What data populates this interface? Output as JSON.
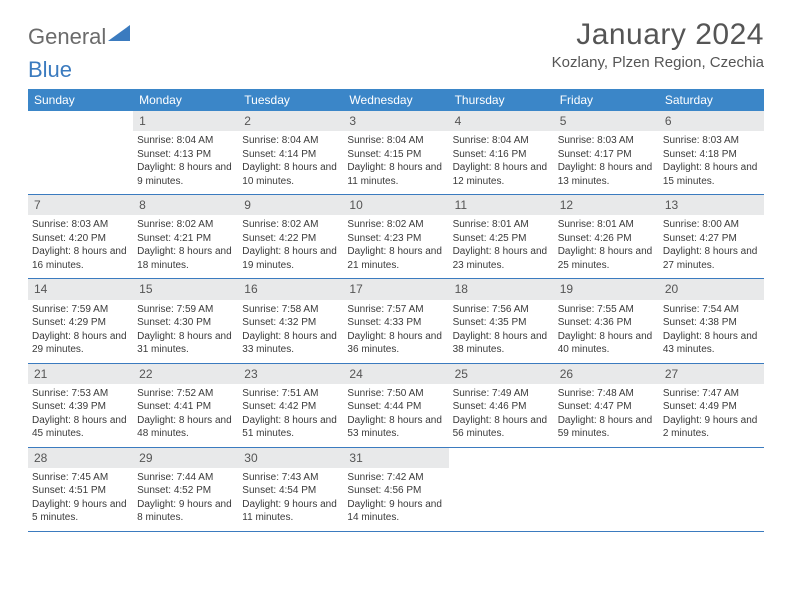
{
  "brand": {
    "part1": "General",
    "part2": "Blue"
  },
  "title": "January 2024",
  "location": "Kozlany, Plzen Region, Czechia",
  "colors": {
    "header_bg": "#3b86c8",
    "daynum_bg": "#e8e9ea",
    "rule": "#3b7bbf",
    "text": "#3a3a3a",
    "logo_gray": "#6b6b6b",
    "logo_blue": "#3b7bbf"
  },
  "dow": [
    "Sunday",
    "Monday",
    "Tuesday",
    "Wednesday",
    "Thursday",
    "Friday",
    "Saturday"
  ],
  "weeks": [
    [
      null,
      {
        "n": "1",
        "sr": "8:04 AM",
        "ss": "4:13 PM",
        "dl": "8 hours and 9 minutes."
      },
      {
        "n": "2",
        "sr": "8:04 AM",
        "ss": "4:14 PM",
        "dl": "8 hours and 10 minutes."
      },
      {
        "n": "3",
        "sr": "8:04 AM",
        "ss": "4:15 PM",
        "dl": "8 hours and 11 minutes."
      },
      {
        "n": "4",
        "sr": "8:04 AM",
        "ss": "4:16 PM",
        "dl": "8 hours and 12 minutes."
      },
      {
        "n": "5",
        "sr": "8:03 AM",
        "ss": "4:17 PM",
        "dl": "8 hours and 13 minutes."
      },
      {
        "n": "6",
        "sr": "8:03 AM",
        "ss": "4:18 PM",
        "dl": "8 hours and 15 minutes."
      }
    ],
    [
      {
        "n": "7",
        "sr": "8:03 AM",
        "ss": "4:20 PM",
        "dl": "8 hours and 16 minutes."
      },
      {
        "n": "8",
        "sr": "8:02 AM",
        "ss": "4:21 PM",
        "dl": "8 hours and 18 minutes."
      },
      {
        "n": "9",
        "sr": "8:02 AM",
        "ss": "4:22 PM",
        "dl": "8 hours and 19 minutes."
      },
      {
        "n": "10",
        "sr": "8:02 AM",
        "ss": "4:23 PM",
        "dl": "8 hours and 21 minutes."
      },
      {
        "n": "11",
        "sr": "8:01 AM",
        "ss": "4:25 PM",
        "dl": "8 hours and 23 minutes."
      },
      {
        "n": "12",
        "sr": "8:01 AM",
        "ss": "4:26 PM",
        "dl": "8 hours and 25 minutes."
      },
      {
        "n": "13",
        "sr": "8:00 AM",
        "ss": "4:27 PM",
        "dl": "8 hours and 27 minutes."
      }
    ],
    [
      {
        "n": "14",
        "sr": "7:59 AM",
        "ss": "4:29 PM",
        "dl": "8 hours and 29 minutes."
      },
      {
        "n": "15",
        "sr": "7:59 AM",
        "ss": "4:30 PM",
        "dl": "8 hours and 31 minutes."
      },
      {
        "n": "16",
        "sr": "7:58 AM",
        "ss": "4:32 PM",
        "dl": "8 hours and 33 minutes."
      },
      {
        "n": "17",
        "sr": "7:57 AM",
        "ss": "4:33 PM",
        "dl": "8 hours and 36 minutes."
      },
      {
        "n": "18",
        "sr": "7:56 AM",
        "ss": "4:35 PM",
        "dl": "8 hours and 38 minutes."
      },
      {
        "n": "19",
        "sr": "7:55 AM",
        "ss": "4:36 PM",
        "dl": "8 hours and 40 minutes."
      },
      {
        "n": "20",
        "sr": "7:54 AM",
        "ss": "4:38 PM",
        "dl": "8 hours and 43 minutes."
      }
    ],
    [
      {
        "n": "21",
        "sr": "7:53 AM",
        "ss": "4:39 PM",
        "dl": "8 hours and 45 minutes."
      },
      {
        "n": "22",
        "sr": "7:52 AM",
        "ss": "4:41 PM",
        "dl": "8 hours and 48 minutes."
      },
      {
        "n": "23",
        "sr": "7:51 AM",
        "ss": "4:42 PM",
        "dl": "8 hours and 51 minutes."
      },
      {
        "n": "24",
        "sr": "7:50 AM",
        "ss": "4:44 PM",
        "dl": "8 hours and 53 minutes."
      },
      {
        "n": "25",
        "sr": "7:49 AM",
        "ss": "4:46 PM",
        "dl": "8 hours and 56 minutes."
      },
      {
        "n": "26",
        "sr": "7:48 AM",
        "ss": "4:47 PM",
        "dl": "8 hours and 59 minutes."
      },
      {
        "n": "27",
        "sr": "7:47 AM",
        "ss": "4:49 PM",
        "dl": "9 hours and 2 minutes."
      }
    ],
    [
      {
        "n": "28",
        "sr": "7:45 AM",
        "ss": "4:51 PM",
        "dl": "9 hours and 5 minutes."
      },
      {
        "n": "29",
        "sr": "7:44 AM",
        "ss": "4:52 PM",
        "dl": "9 hours and 8 minutes."
      },
      {
        "n": "30",
        "sr": "7:43 AM",
        "ss": "4:54 PM",
        "dl": "9 hours and 11 minutes."
      },
      {
        "n": "31",
        "sr": "7:42 AM",
        "ss": "4:56 PM",
        "dl": "9 hours and 14 minutes."
      },
      null,
      null,
      null
    ]
  ],
  "labels": {
    "sunrise": "Sunrise:",
    "sunset": "Sunset:",
    "daylight": "Daylight:"
  }
}
